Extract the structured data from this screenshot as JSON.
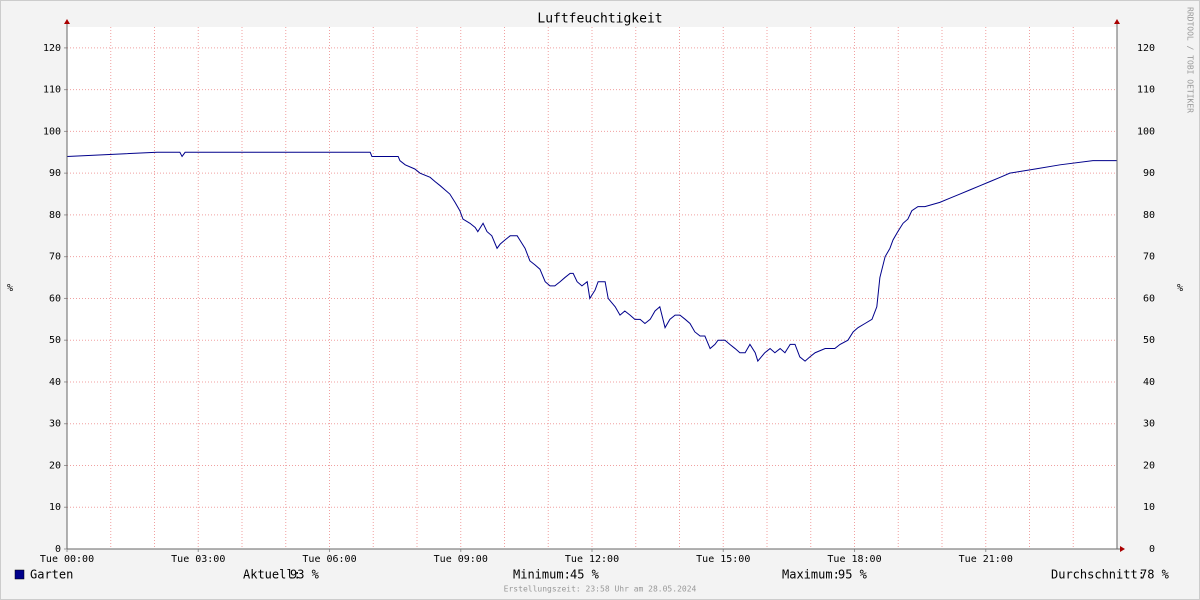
{
  "chart_data": {
    "type": "line",
    "title": "Luftfeuchtigkeit",
    "y_label": "%",
    "y2_label": "%",
    "watermark": "RRDTOOL / TOBI OETIKER",
    "xlim": [
      0,
      24
    ],
    "xticks": [
      {
        "value": 0,
        "label": "Tue 00:00"
      },
      {
        "value": 3,
        "label": "Tue 03:00"
      },
      {
        "value": 6,
        "label": "Tue 06:00"
      },
      {
        "value": 9,
        "label": "Tue 09:00"
      },
      {
        "value": 12,
        "label": "Tue 12:00"
      },
      {
        "value": 15,
        "label": "Tue 15:00"
      },
      {
        "value": 18,
        "label": "Tue 18:00"
      },
      {
        "value": 21,
        "label": "Tue 21:00"
      }
    ],
    "x_grid": [
      1,
      2,
      4,
      5,
      7,
      8,
      10,
      11,
      13,
      14,
      16,
      17,
      19,
      20,
      22,
      23
    ],
    "ylim": [
      0,
      125
    ],
    "yticks": [
      0,
      10,
      20,
      30,
      40,
      50,
      60,
      70,
      80,
      90,
      100,
      110,
      120
    ],
    "grid": true,
    "series": [
      {
        "name": "Garten",
        "color": "#00008b",
        "x": [
          0,
          2.06,
          2.58,
          2.63,
          2.7,
          6.93,
          6.97,
          7.57,
          7.61,
          7.73,
          7.95,
          8.07,
          8.3,
          8.41,
          8.53,
          8.64,
          8.75,
          8.87,
          8.98,
          9.05,
          9.21,
          9.33,
          9.39,
          9.51,
          9.6,
          9.71,
          9.83,
          9.9,
          10.01,
          10.13,
          10.29,
          10.35,
          10.47,
          10.58,
          10.7,
          10.81,
          10.93,
          11.04,
          11.15,
          11.27,
          11.38,
          11.5,
          11.57,
          11.66,
          11.77,
          11.89,
          11.95,
          12.07,
          12.14,
          12.3,
          12.37,
          12.53,
          12.64,
          12.75,
          12.87,
          12.98,
          13.1,
          13.21,
          13.33,
          13.44,
          13.55,
          13.67,
          13.78,
          13.9,
          14.01,
          14.13,
          14.24,
          14.35,
          14.47,
          14.58,
          14.7,
          14.81,
          14.88,
          15.04,
          15.15,
          15.27,
          15.38,
          15.5,
          15.61,
          15.73,
          15.79,
          15.95,
          16.07,
          16.18,
          16.3,
          16.41,
          16.53,
          16.64,
          16.75,
          16.87,
          16.98,
          17.1,
          17.33,
          17.55,
          17.67,
          17.85,
          17.97,
          18.08,
          18.24,
          18.4,
          18.51,
          18.58,
          18.7,
          18.81,
          18.88,
          18.99,
          19.11,
          19.22,
          19.31,
          19.45,
          19.61,
          19.95,
          20.18,
          20.41,
          20.64,
          20.87,
          21.1,
          21.33,
          21.55,
          22.13,
          22.7,
          23.45,
          24
        ],
        "values": [
          94,
          95,
          95,
          94,
          95,
          95,
          94,
          94,
          93,
          92,
          91,
          90,
          89,
          88,
          87,
          86,
          85,
          83,
          81,
          79,
          78,
          77,
          76,
          78,
          76,
          75,
          72,
          73,
          74,
          75,
          75,
          74,
          72,
          69,
          68,
          67,
          64,
          63,
          63,
          64,
          65,
          66,
          66,
          64,
          63,
          64,
          60,
          62,
          64,
          64,
          60,
          58,
          56,
          57,
          56,
          55,
          55,
          54,
          55,
          57,
          58,
          53,
          55,
          56,
          56,
          55,
          54,
          52,
          51,
          51,
          48,
          49,
          50,
          50,
          49,
          48,
          47,
          47,
          49,
          47,
          45,
          47,
          48,
          47,
          48,
          47,
          49,
          49,
          46,
          45,
          46,
          47,
          48,
          48,
          49,
          50,
          52,
          53,
          54,
          55,
          58,
          65,
          70,
          72,
          74,
          76,
          78,
          79,
          81,
          82,
          82,
          83,
          84,
          85,
          86,
          87,
          88,
          89,
          90,
          91,
          92,
          93,
          93
        ]
      }
    ],
    "stats": [
      {
        "label": "Aktuell:",
        "value": "93 %"
      },
      {
        "label": "Minimum:",
        "value": "45 %"
      },
      {
        "label": "Maximum:",
        "value": "95 %"
      },
      {
        "label": "Durchschnitt:",
        "value": "78 %"
      }
    ],
    "footer": "Erstellungszeit: 23:58 Uhr am 28.05.2024"
  }
}
